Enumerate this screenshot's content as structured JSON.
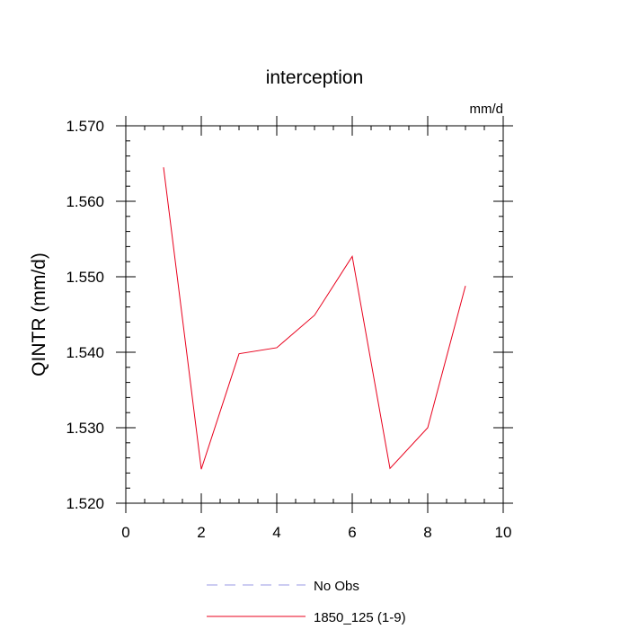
{
  "chart_data": {
    "type": "line",
    "title": "interception",
    "units_label": "mm/d",
    "ylabel": "QINTR  (mm/d)",
    "xlabel": "",
    "xlim": [
      0,
      10
    ],
    "ylim": [
      1.52,
      1.57
    ],
    "xticks": [
      0,
      2,
      4,
      6,
      8,
      10
    ],
    "xtick_labels": [
      "0",
      "2",
      "4",
      "6",
      "8",
      "10"
    ],
    "yticks": [
      1.52,
      1.53,
      1.54,
      1.55,
      1.56,
      1.57
    ],
    "ytick_labels": [
      "1.520",
      "1.530",
      "1.540",
      "1.550",
      "1.560",
      "1.570"
    ],
    "grid": false,
    "legend_position": "bottom",
    "series": [
      {
        "name": "No Obs",
        "color": "#9a9ae6",
        "dash": "dashed",
        "x": [],
        "y": []
      },
      {
        "name": "1850_125 (1-9)",
        "color": "#e8001c",
        "dash": "solid",
        "x": [
          1,
          2,
          3,
          4,
          5,
          6,
          7,
          8,
          9
        ],
        "y": [
          1.5645,
          1.5245,
          1.5398,
          1.5406,
          1.5449,
          1.5527,
          1.5246,
          1.53,
          1.5488
        ]
      }
    ]
  }
}
